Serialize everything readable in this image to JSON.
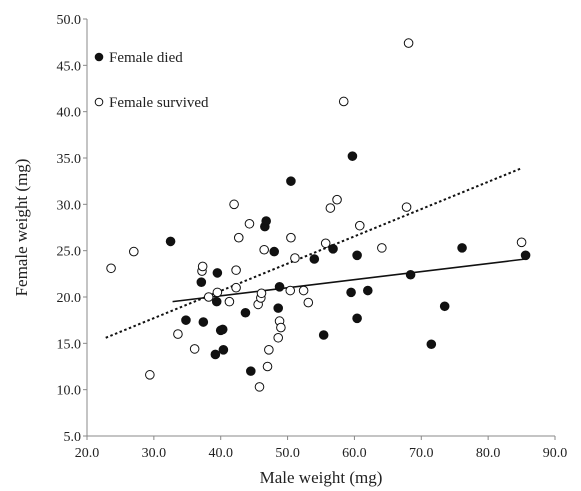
{
  "chart_data": {
    "type": "scatter",
    "xlabel": "Male weight (mg)",
    "ylabel": "Female weight (mg)",
    "xlim": [
      20.0,
      90.0
    ],
    "ylim": [
      5.0,
      50.0
    ],
    "xticks": [
      "20.0",
      "30.0",
      "40.0",
      "50.0",
      "60.0",
      "70.0",
      "80.0",
      "90.0"
    ],
    "yticks": [
      "5.0",
      "10.0",
      "15.0",
      "20.0",
      "25.0",
      "30.0",
      "35.0",
      "40.0",
      "45.0",
      "50.0"
    ],
    "grid": false,
    "legend_position": "top-left",
    "series": [
      {
        "name": "Female died",
        "marker": "filled-circle",
        "color": "#111111",
        "points": [
          [
            32.5,
            26.0
          ],
          [
            34.8,
            17.5
          ],
          [
            37.1,
            21.6
          ],
          [
            37.4,
            17.3
          ],
          [
            39.2,
            13.8
          ],
          [
            39.4,
            19.5
          ],
          [
            39.5,
            22.6
          ],
          [
            40.0,
            16.4
          ],
          [
            40.3,
            16.5
          ],
          [
            40.4,
            14.3
          ],
          [
            43.7,
            18.3
          ],
          [
            44.5,
            12.0
          ],
          [
            46.6,
            27.6
          ],
          [
            46.8,
            28.2
          ],
          [
            48.0,
            24.9
          ],
          [
            48.6,
            18.8
          ],
          [
            48.8,
            21.1
          ],
          [
            50.5,
            32.5
          ],
          [
            54.0,
            24.1
          ],
          [
            55.4,
            15.9
          ],
          [
            56.8,
            25.2
          ],
          [
            59.5,
            20.5
          ],
          [
            59.7,
            35.2
          ],
          [
            60.4,
            24.5
          ],
          [
            60.4,
            17.7
          ],
          [
            62.0,
            20.7
          ],
          [
            68.4,
            22.4
          ],
          [
            71.5,
            14.9
          ],
          [
            73.5,
            19.0
          ],
          [
            76.1,
            25.3
          ],
          [
            85.6,
            24.5
          ]
        ]
      },
      {
        "name": "Female survived",
        "marker": "open-circle",
        "color": "#111111",
        "points": [
          [
            23.6,
            23.1
          ],
          [
            27.0,
            24.9
          ],
          [
            29.4,
            11.6
          ],
          [
            33.6,
            16.0
          ],
          [
            36.1,
            14.4
          ],
          [
            37.2,
            22.8
          ],
          [
            37.3,
            23.3
          ],
          [
            38.2,
            20.0
          ],
          [
            39.5,
            20.5
          ],
          [
            41.3,
            19.5
          ],
          [
            42.0,
            30.0
          ],
          [
            42.3,
            21.0
          ],
          [
            42.3,
            22.9
          ],
          [
            42.7,
            26.4
          ],
          [
            44.3,
            27.9
          ],
          [
            45.6,
            19.2
          ],
          [
            45.8,
            10.3
          ],
          [
            46.0,
            19.9
          ],
          [
            46.1,
            20.4
          ],
          [
            46.5,
            25.1
          ],
          [
            47.0,
            12.5
          ],
          [
            47.2,
            14.3
          ],
          [
            48.6,
            15.6
          ],
          [
            48.8,
            17.4
          ],
          [
            49.0,
            16.7
          ],
          [
            50.4,
            20.7
          ],
          [
            50.5,
            26.4
          ],
          [
            51.1,
            24.2
          ],
          [
            52.4,
            20.7
          ],
          [
            53.1,
            19.4
          ],
          [
            55.7,
            25.8
          ],
          [
            56.4,
            29.6
          ],
          [
            57.4,
            30.5
          ],
          [
            58.4,
            41.1
          ],
          [
            60.8,
            27.7
          ],
          [
            64.1,
            25.3
          ],
          [
            67.8,
            29.7
          ],
          [
            68.1,
            47.4
          ],
          [
            85.0,
            25.9
          ]
        ]
      }
    ],
    "trendlines": [
      {
        "series": "Female died",
        "style": "solid",
        "x": [
          32.8,
          85.6
        ],
        "y": [
          19.5,
          24.1
        ]
      },
      {
        "series": "Female survived",
        "style": "dotted",
        "x": [
          22.8,
          85.0
        ],
        "y": [
          15.6,
          33.9
        ]
      }
    ]
  }
}
